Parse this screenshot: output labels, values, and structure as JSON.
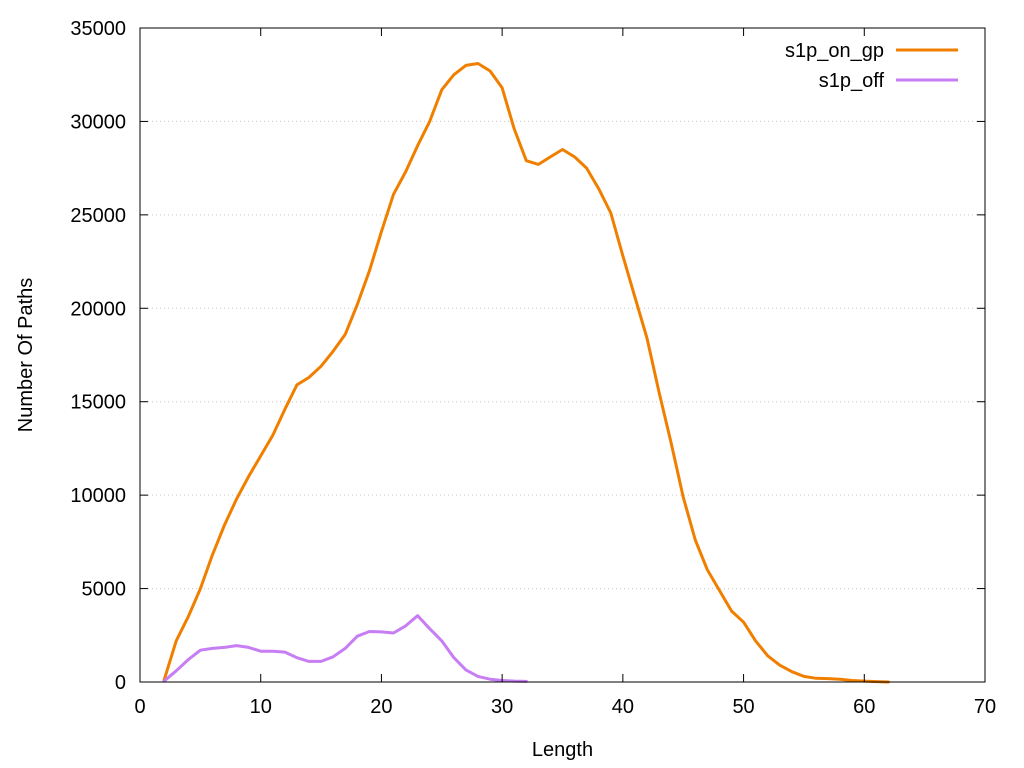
{
  "chart_data": {
    "type": "line",
    "title": "",
    "xlabel": "Length",
    "ylabel": "Number Of Paths",
    "xlim": [
      0,
      70
    ],
    "ylim": [
      0,
      35000
    ],
    "xticks": [
      0,
      10,
      20,
      30,
      40,
      50,
      60,
      70
    ],
    "yticks": [
      0,
      5000,
      10000,
      15000,
      20000,
      25000,
      30000,
      35000
    ],
    "grid": "horizontal dotted",
    "legend_position": "top-right",
    "series": [
      {
        "name": "s1p_on_gp",
        "color": "#f07f00",
        "x": [
          2,
          3,
          4,
          5,
          6,
          7,
          8,
          9,
          10,
          11,
          12,
          13,
          14,
          15,
          16,
          17,
          18,
          19,
          20,
          21,
          22,
          23,
          24,
          25,
          26,
          27,
          28,
          29,
          30,
          31,
          32,
          33,
          34,
          35,
          36,
          37,
          38,
          39,
          40,
          41,
          42,
          43,
          44,
          45,
          46,
          47,
          48,
          49,
          50,
          51,
          52,
          53,
          54,
          55,
          56,
          57,
          58,
          59,
          60,
          61,
          62
        ],
        "y": [
          100,
          2200,
          3500,
          5000,
          6800,
          8400,
          9800,
          11000,
          12100,
          13200,
          14600,
          15900,
          16300,
          16900,
          17700,
          18600,
          20200,
          22000,
          24100,
          26100,
          27300,
          28700,
          30000,
          31700,
          32500,
          33000,
          33100,
          32700,
          31800,
          29600,
          27900,
          27700,
          28100,
          28500,
          28100,
          27500,
          26400,
          25100,
          22800,
          20600,
          18400,
          15500,
          12800,
          9900,
          7600,
          6000,
          4900,
          3800,
          3200,
          2200,
          1400,
          900,
          550,
          300,
          200,
          180,
          150,
          80,
          50,
          20,
          0
        ]
      },
      {
        "name": "s1p_off",
        "color": "#c77df3",
        "x": [
          2,
          3,
          4,
          5,
          6,
          7,
          8,
          9,
          10,
          11,
          12,
          13,
          14,
          15,
          16,
          17,
          18,
          19,
          20,
          21,
          22,
          23,
          24,
          25,
          26,
          27,
          28,
          29,
          30,
          31,
          32
        ],
        "y": [
          50,
          600,
          1200,
          1700,
          1800,
          1850,
          1950,
          1850,
          1650,
          1650,
          1600,
          1300,
          1100,
          1100,
          1350,
          1800,
          2450,
          2700,
          2680,
          2620,
          3000,
          3550,
          2850,
          2200,
          1300,
          650,
          300,
          150,
          80,
          50,
          30
        ]
      }
    ]
  }
}
